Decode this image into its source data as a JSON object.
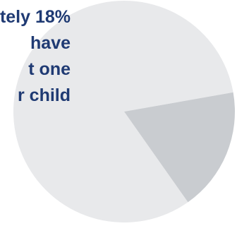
{
  "caption": {
    "lines": [
      "tely 18%",
      "have",
      "t one",
      "r child"
    ]
  },
  "colors": {
    "text": "#1f3a73",
    "slice_main": "#e8e9eb",
    "slice_small": "#c9ccd0"
  },
  "chart_data": {
    "type": "pie",
    "values": [
      82,
      18
    ],
    "colors": [
      "#e8e9eb",
      "#c9ccd0"
    ]
  }
}
